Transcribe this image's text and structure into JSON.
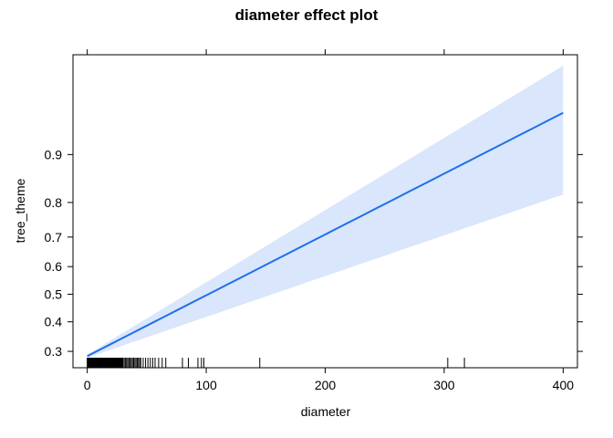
{
  "chart_data": {
    "type": "line",
    "title": "diameter effect plot",
    "xlabel": "diameter",
    "ylabel": "tree_theme",
    "xlim": [
      -12,
      412
    ],
    "y_scale": "probit",
    "ylim": [
      0.25,
      0.986
    ],
    "x_ticks": [
      0,
      100,
      200,
      300,
      400
    ],
    "x_tick_labels": [
      "0",
      "100",
      "200",
      "300",
      "400"
    ],
    "y_ticks": [
      0.3,
      0.4,
      0.5,
      0.6,
      0.7,
      0.8,
      0.9
    ],
    "y_tick_labels": [
      "0.3",
      "0.4",
      "0.5",
      "0.6",
      "0.7",
      "0.8",
      "0.9"
    ],
    "series": [
      {
        "x": [
          0,
          400
        ],
        "y": [
          0.285,
          0.952
        ],
        "color": "#1f6fe8"
      }
    ],
    "confidence_band": {
      "x": [
        0,
        400
      ],
      "lower": [
        0.28,
        0.82
      ],
      "upper": [
        0.29,
        0.982
      ],
      "color": "#d9e6fb"
    },
    "rug_x": [
      0,
      0.5,
      1,
      1.5,
      2,
      2.5,
      3,
      3.5,
      4,
      4.5,
      5,
      5.5,
      6,
      6.5,
      7,
      7.5,
      8,
      8.5,
      9,
      9.5,
      10,
      10.5,
      11,
      11.5,
      12,
      12.5,
      13,
      13.5,
      14,
      14.5,
      15,
      15.5,
      16,
      16.5,
      17,
      17.5,
      18,
      18.5,
      19,
      19.5,
      20,
      20.5,
      21,
      21.5,
      22,
      22.5,
      23,
      23.5,
      24,
      24.5,
      25,
      25.5,
      26,
      26.5,
      27,
      27.5,
      28,
      28.5,
      29,
      29.5,
      30,
      31,
      32,
      33,
      34,
      35,
      36,
      37,
      38,
      39,
      40,
      41,
      42,
      43,
      44,
      45,
      47,
      49,
      51,
      53,
      55,
      57,
      60,
      63,
      66,
      80,
      85,
      93,
      96,
      98,
      145,
      303,
      317
    ],
    "grid": false,
    "frame_color": "#000000"
  }
}
